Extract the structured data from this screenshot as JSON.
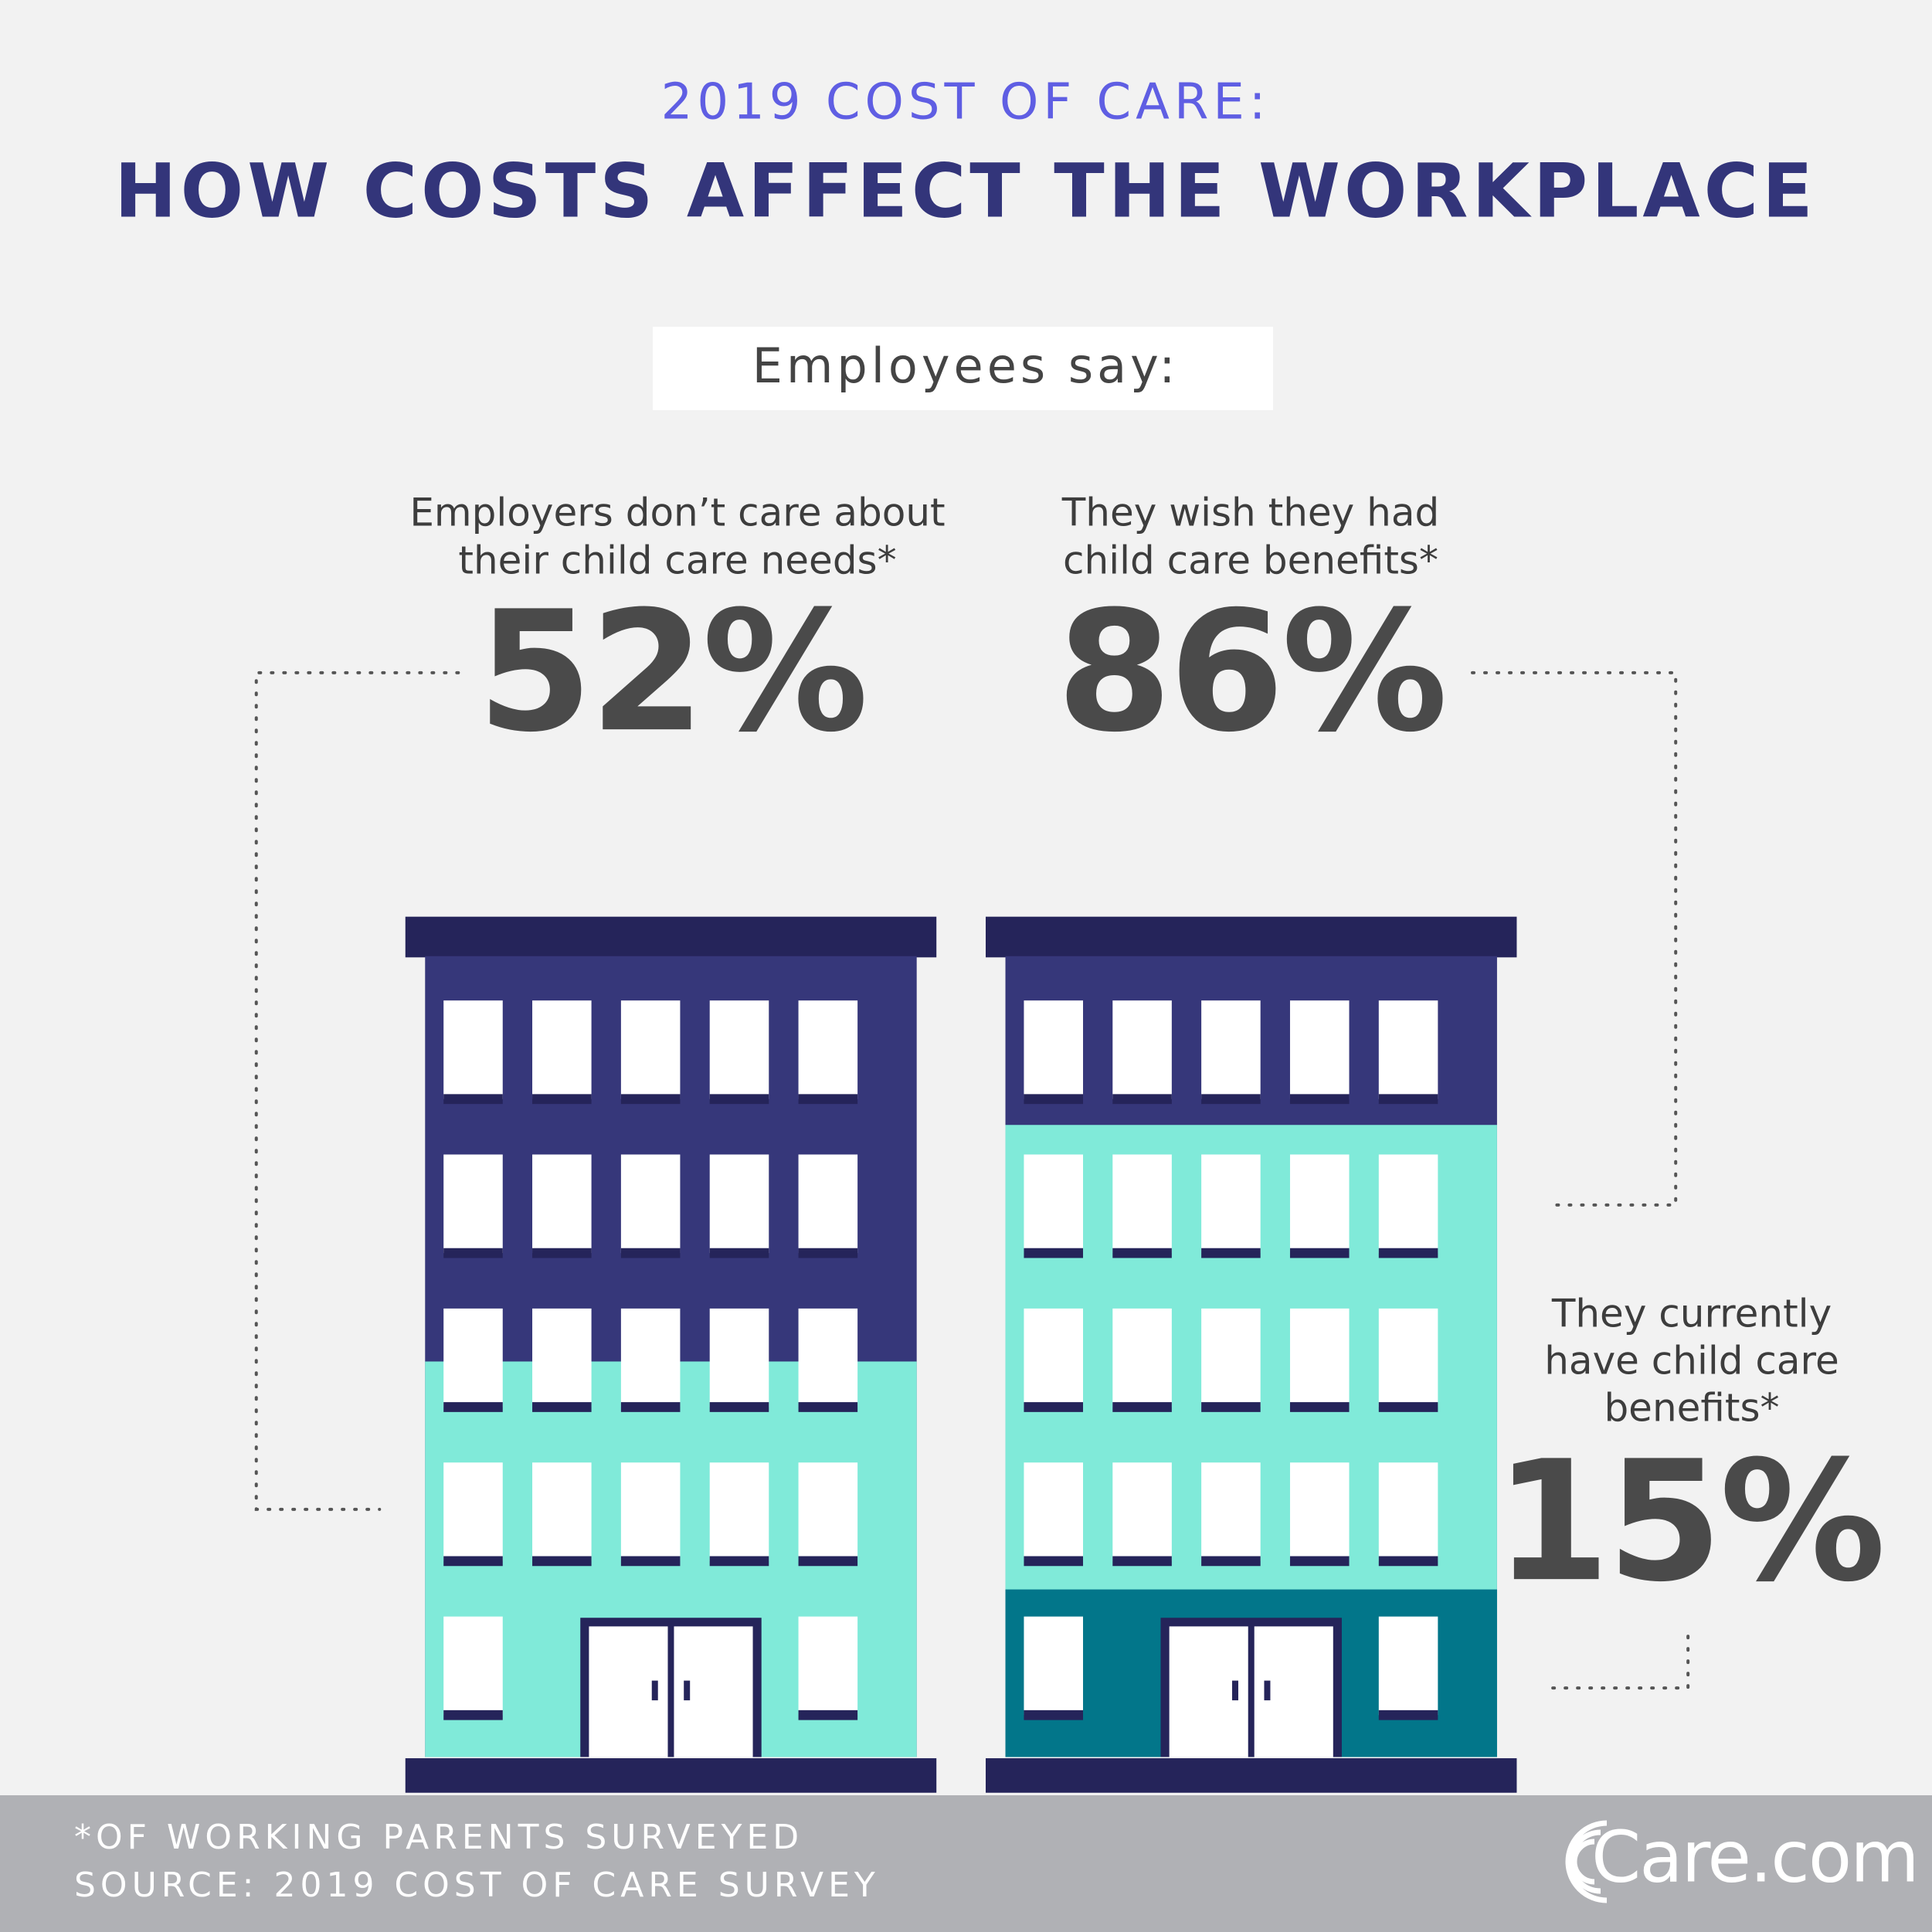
{
  "header": {
    "kicker": "2019 COST OF CARE:",
    "title": "HOW COSTS AFFECT THE WORKPLACE"
  },
  "intro": "Employees say:",
  "stats": [
    {
      "label_lines": [
        "Employers don’t care about",
        "their child care needs*"
      ],
      "figure": "52%"
    },
    {
      "label_lines": [
        "They wish they had",
        "child care benefits*"
      ],
      "figure": "86%"
    },
    {
      "label_lines": [
        "They currently",
        "have child care",
        "benefits*"
      ],
      "figure": "15%"
    }
  ],
  "footer": {
    "note": "*OF WORKING PARENTS SURVEYED",
    "source": "SOURCE: 2019 COST OF CARE SURVEY",
    "logo": "Care.com"
  }
}
